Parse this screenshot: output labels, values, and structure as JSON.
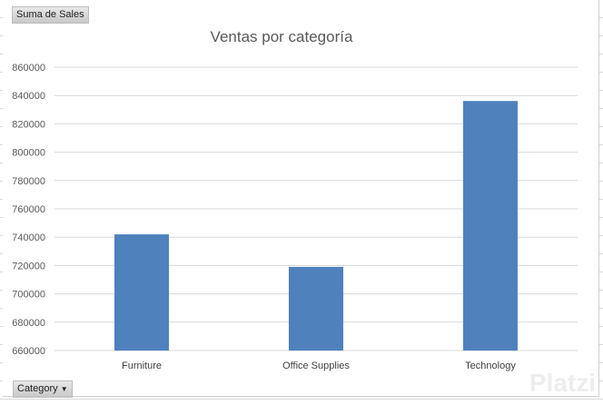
{
  "field_buttons": {
    "value_field": "Suma de Sales",
    "axis_field": "Category",
    "axis_dropdown_icon": "triangle-down-icon"
  },
  "watermark": "Platzi",
  "colors": {
    "bar": "#4f81bd",
    "grid": "#d9d9d9",
    "text": "#595959"
  },
  "chart_data": {
    "type": "bar",
    "title": "Ventas por categoría",
    "categories": [
      "Furniture",
      "Office Supplies",
      "Technology"
    ],
    "values": [
      742000,
      719047,
      836154
    ],
    "ylim": [
      660000,
      860000
    ],
    "yticks": [
      "660000",
      "680000",
      "700000",
      "720000",
      "740000",
      "760000",
      "780000",
      "800000",
      "820000",
      "840000",
      "860000"
    ],
    "grid": true,
    "legend": "none",
    "xlabel": "",
    "ylabel": ""
  }
}
